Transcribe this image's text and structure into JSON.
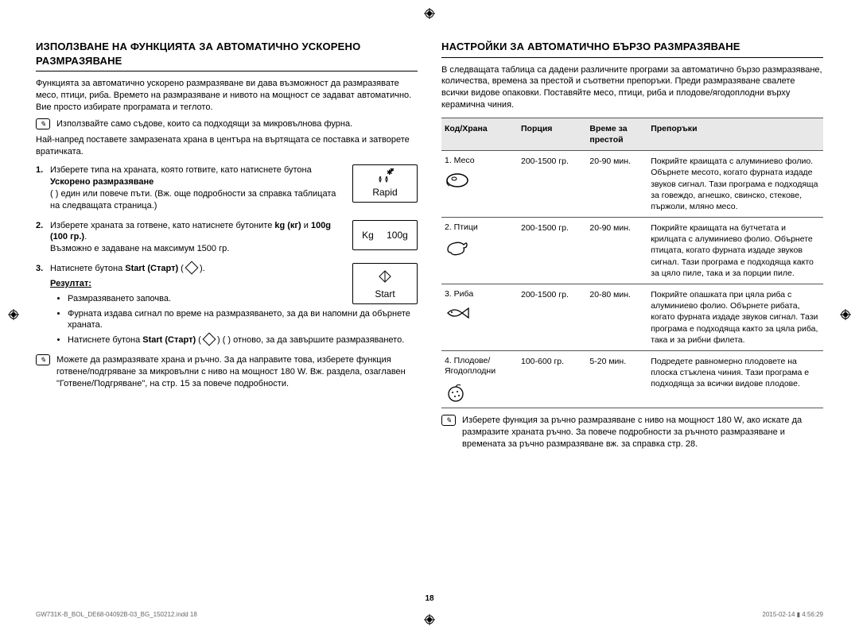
{
  "pageNumber": "18",
  "imprint": {
    "left": "GW731K-B_BOL_DE68-04092B-03_BG_150212.indd   18",
    "right": "2015-02-14   ▮ 4:56:29"
  },
  "left": {
    "heading": "ИЗПОЛЗВАНЕ НА ФУНКЦИЯТА ЗА АВТОМАТИЧНО УСКОРЕНО РАЗМРАЗЯВАНЕ",
    "intro": "Функцията за автоматично ускорено размразяване ви дава възможност да размразявате месо, птици, риба. Времето на размразяване и нивото на мощност се задават автоматично. Вие просто избирате програмата и теглото.",
    "note1": "Използвайте само съдове, които са подходящи за микровълнова фурна.",
    "preText": "Най-напред поставете замразената храна в центъра на въртящата се поставка и затворете вратичката.",
    "step1_a": "Изберете типа на храната, която готвите, като натиснете бутона ",
    "step1_bold": "Ускорено размразяване",
    "step1_b": " (  ) един или повече пъти. (Вж. още подробности за справка таблицата на следващата страница.)",
    "step2_a": "Изберете храната за готвене, като натиснете бутоните ",
    "step2_bold": "kg (кг)",
    "step2_and": " и ",
    "step2_bold2": "100g (100 гр.)",
    "step2_b": ".",
    "step2_c": "Възможно е задаване на максимум 1500 гр.",
    "step3_a": "Натиснете бутона ",
    "step3_bold": "Start (Старт)",
    "step3_b": " (   ).",
    "resultLabel": "Резултат:",
    "bullet1": "Размразяването започва.",
    "bullet2": "Фурната издава сигнал по време на размразяването, за да ви напомни да обърнете храната.",
    "bullet3_a": "Натиснете бутона ",
    "bullet3_bold": "Start (Старт)",
    "bullet3_b": " (   ) отново, за да завършите размразяването.",
    "note2": "Можете да размразявате храна и ръчно. За да направите това, изберете функция готвене/подгряване за микровълни с ниво на мощност 180 W. Вж. раздела, озаглавен \"Готвене/Подгряване\", на стр. 15 за повече подробности.",
    "btnRapid": "Rapid",
    "btnKg": "Kg",
    "btn100g": "100g",
    "btnStart": "Start"
  },
  "right": {
    "heading": "НАСТРОЙКИ ЗА АВТОМАТИЧНО БЪРЗО РАЗМРАЗЯВАНЕ",
    "intro": "В следващата таблица са дадени различните програми за автоматично бързо размразяване, количества, времена за престой и съответни препоръки. Преди размразяване свалете всички видове опаковки. Поставяйте месо, птици, риба и плодове/ягодоплодни върху керамична чиния.",
    "th1": "Код/Храна",
    "th2": "Порция",
    "th3": "Време за престой",
    "th4": "Препоръки",
    "rows": [
      {
        "code": "1. Месо",
        "icon": "meat",
        "portion": "200-1500 гр.",
        "time": "20-90 мин.",
        "rec": "Покрийте краищата с алуминиево фолио. Обърнете месото, когато фурната издаде звуков сигнал. Тази програма е подходяща за говеждо, агнешко, свинско, стекове, пържоли, мляно месо."
      },
      {
        "code": "2. Птици",
        "icon": "poultry",
        "portion": "200-1500 гр.",
        "time": "20-90 мин.",
        "rec": "Покрийте краищата на бутчетата и крилцата с алуминиево фолио. Обърнете птицата, когато фурната издаде звуков сигнал. Тази програма е подходяща както за цяло пиле, така и за порции пиле."
      },
      {
        "code": "3. Риба",
        "icon": "fish",
        "portion": "200-1500 гр.",
        "time": "20-80 мин.",
        "rec": "Покрийте опашката при цяла риба с алуминиево фолио. Обърнете рибата, когато фурната издаде звуков сигнал. Тази програма е подходяща както за цяла риба, така и за рибни филета."
      },
      {
        "code": "4. Плодове/ Ягодоплодни",
        "icon": "fruit",
        "portion": "100-600 гр.",
        "time": "5-20 мин.",
        "rec": "Подредете равномерно плодовете на плоска стъклена чиния. Тази програма е подходяща за всички видове плодове."
      }
    ],
    "noteBottom": "Изберете функция за ръчно размразяване с ниво на мощност 180 W, ако искате да размразите храната ръчно. За повече подробности за ръчното размразяване и времената за ръчно размразяване вж. за справка стр. 28."
  }
}
